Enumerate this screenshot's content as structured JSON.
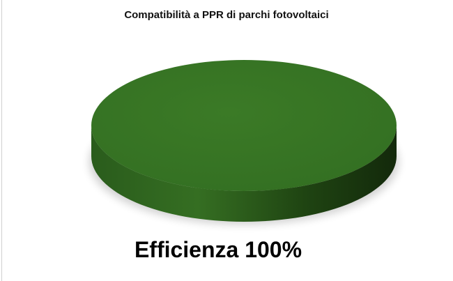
{
  "chart_data": {
    "type": "pie",
    "style": "3d",
    "title": "Compatibilità a PPR di parchi fotovoltaici",
    "slices": [
      {
        "label": "Efficienza",
        "value": 100,
        "display": "Efficienza 100%",
        "color": "#3a7a26"
      }
    ],
    "legend": "none"
  }
}
